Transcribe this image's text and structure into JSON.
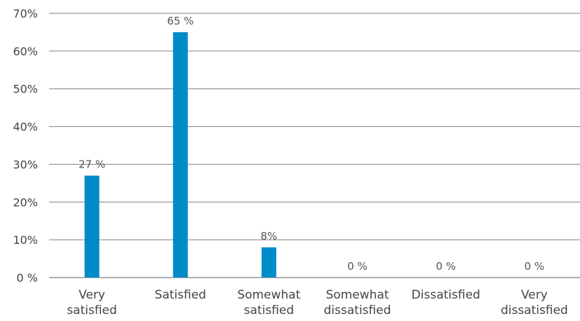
{
  "chart_data": {
    "type": "bar",
    "categories": [
      [
        "Very",
        "satisfied"
      ],
      [
        "Satisfied"
      ],
      [
        "Somewhat",
        "satisfied"
      ],
      [
        "Somewhat",
        "dissatisfied"
      ],
      [
        "Dissatisfied"
      ],
      [
        "Very",
        "dissatisfied"
      ]
    ],
    "values": [
      27,
      65,
      8,
      0,
      0,
      0
    ],
    "data_labels": [
      "27 %",
      "65 %",
      "8%",
      "0 %",
      "0 %",
      "0 %"
    ],
    "ylim": [
      0,
      70
    ],
    "yticks": [
      0,
      10,
      20,
      30,
      40,
      50,
      60,
      70
    ],
    "ytick_labels": [
      "0 %",
      "10%",
      "20%",
      "30%",
      "40%",
      "50%",
      "60%",
      "70%"
    ],
    "grid": true,
    "legend": "none",
    "bar_color": "#008BC9"
  }
}
